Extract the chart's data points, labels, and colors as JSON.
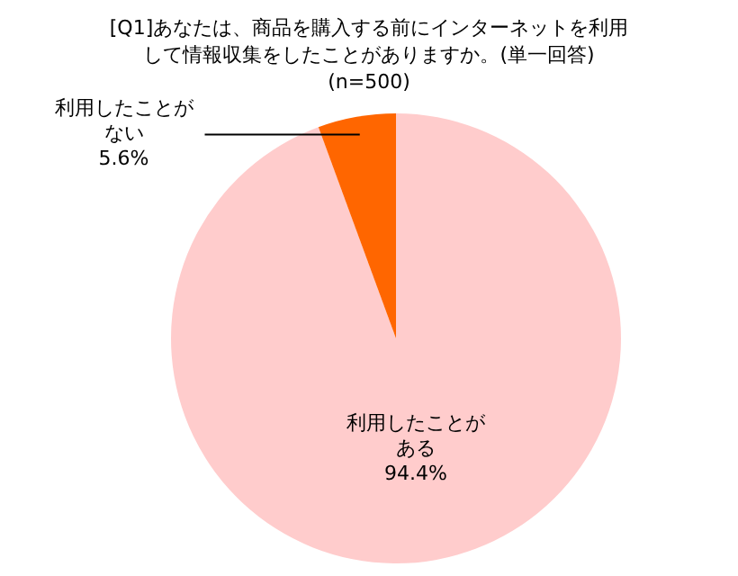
{
  "chart_data": {
    "type": "pie",
    "title": "[Q1]あなたは、商品を購入する前にインターネットを利用して情報収集をしたことがありますか。(単一回答) (n=500)",
    "categories": [
      "利用したことがある",
      "利用したことがない"
    ],
    "values": [
      94.4,
      5.6
    ],
    "colors": [
      "#ffcccc",
      "#ff6600"
    ],
    "value_labels": [
      "94.4%",
      "5.6%"
    ],
    "legend": false
  }
}
